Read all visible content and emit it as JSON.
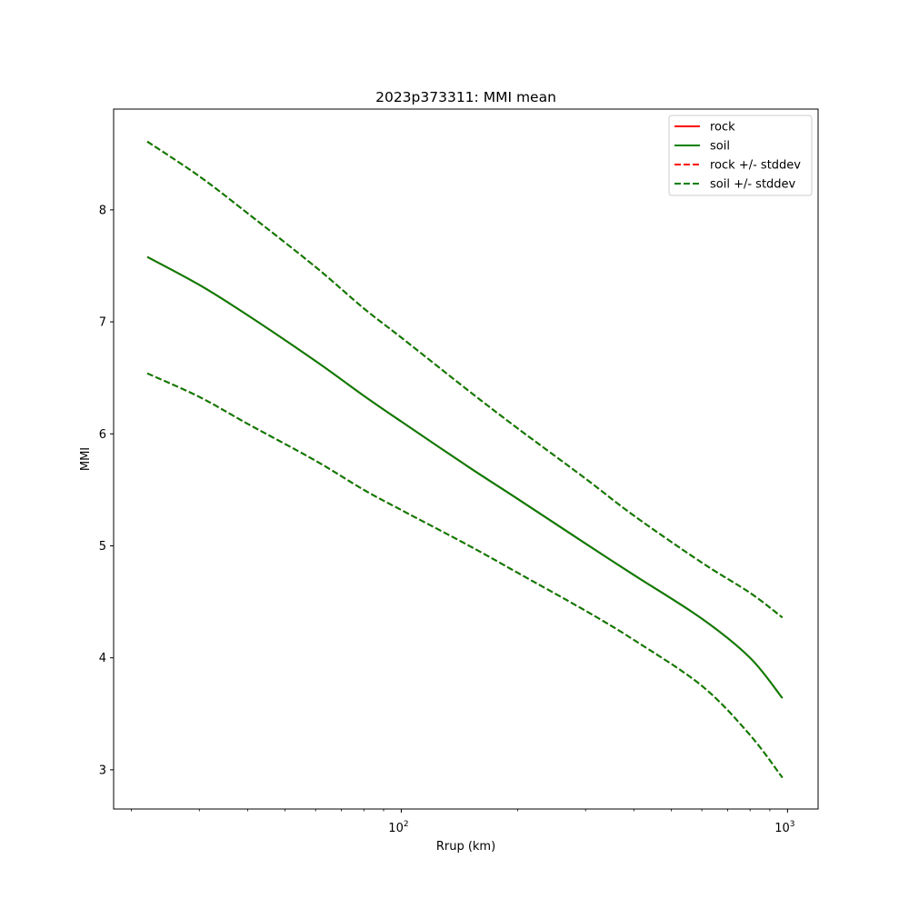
{
  "chart_data": {
    "type": "line",
    "title": "2023p373311: MMI mean",
    "xlabel": "Rrup (km)",
    "ylabel": "MMI",
    "xscale": "log",
    "xlim": [
      18,
      1200
    ],
    "ylim": [
      2.65,
      8.9
    ],
    "grid": false,
    "legend_position": "top-right",
    "x_major_ticks": [
      {
        "value": 100,
        "base": "10",
        "exp": "2"
      },
      {
        "value": 1000,
        "base": "10",
        "exp": "3"
      }
    ],
    "yticks": [
      3,
      4,
      5,
      6,
      7,
      8
    ],
    "x": [
      22,
      30,
      40,
      60,
      80,
      100,
      150,
      200,
      300,
      400,
      600,
      800,
      970
    ],
    "series": [
      {
        "name": "rock",
        "color": "#ff0000",
        "style": "solid",
        "values": [
          7.58,
          7.33,
          7.06,
          6.65,
          6.34,
          6.11,
          5.7,
          5.42,
          5.02,
          4.74,
          4.35,
          4.0,
          3.64
        ]
      },
      {
        "name": "soil",
        "color": "#008000",
        "style": "solid",
        "values": [
          7.58,
          7.33,
          7.06,
          6.65,
          6.34,
          6.11,
          5.7,
          5.42,
          5.02,
          4.74,
          4.35,
          4.0,
          3.64
        ]
      },
      {
        "name": "rock +/- stddev",
        "color": "#ff0000",
        "style": "dashed",
        "values": [
          8.61,
          8.3,
          7.97,
          7.49,
          7.12,
          6.86,
          6.38,
          6.05,
          5.6,
          5.27,
          4.85,
          4.58,
          4.36
        ],
        "values_lower": [
          6.54,
          6.33,
          6.09,
          5.76,
          5.5,
          5.32,
          5.0,
          4.76,
          4.42,
          4.16,
          3.75,
          3.31,
          2.93
        ]
      },
      {
        "name": "soil +/- stddev",
        "color": "#008000",
        "style": "dashed",
        "values": [
          8.61,
          8.3,
          7.97,
          7.49,
          7.12,
          6.86,
          6.38,
          6.05,
          5.6,
          5.27,
          4.85,
          4.58,
          4.36
        ],
        "values_lower": [
          6.54,
          6.33,
          6.09,
          5.76,
          5.5,
          5.32,
          5.0,
          4.76,
          4.42,
          4.16,
          3.75,
          3.31,
          2.93
        ]
      }
    ]
  }
}
